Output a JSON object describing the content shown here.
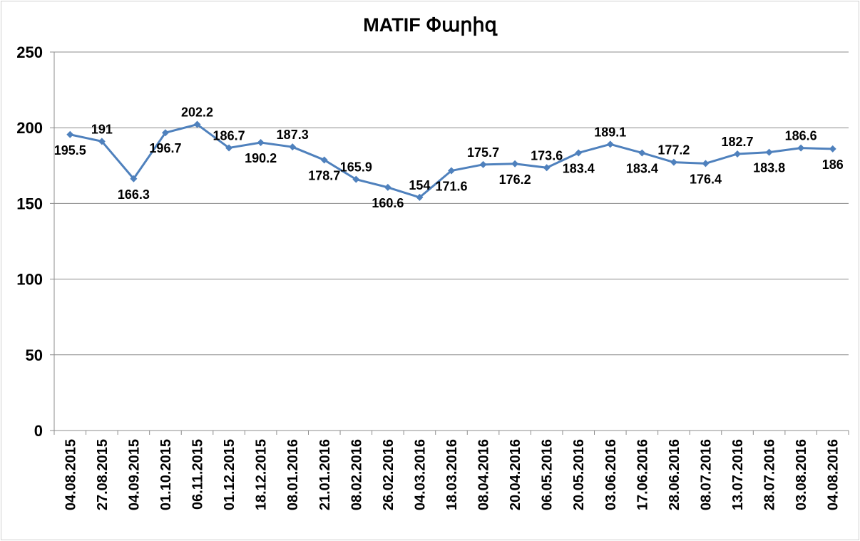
{
  "chart_data": {
    "type": "line",
    "title": "MATIF Փարիզ",
    "xlabel": "",
    "ylabel": "",
    "categories": [
      "04.08.2015",
      "27.08.2015",
      "04.09.2015",
      "01.10.2015",
      "06.11.2015",
      "01.12.2015",
      "18.12.2015",
      "08.01.2016",
      "21.01.2016",
      "08.02.2016",
      "26.02.2016",
      "04.03.2016",
      "18.03.2016",
      "08.04.2016",
      "20.04.2016",
      "06.05.2016",
      "20.05.2016",
      "03.06.2016",
      "17.06.2016",
      "28.06.2016",
      "08.07.2016",
      "13.07.2016",
      "28.07.2016",
      "03.08.2016",
      "04.08.2016"
    ],
    "series": [
      {
        "values": [
          195.5,
          191,
          166.3,
          196.7,
          202.2,
          186.7,
          190.2,
          187.3,
          178.7,
          165.9,
          160.6,
          154,
          171.6,
          175.7,
          176.2,
          173.6,
          183.4,
          189.1,
          183.4,
          177.2,
          176.4,
          182.7,
          183.8,
          186.6,
          186
        ],
        "labels": [
          "195.5",
          "191",
          "166.3",
          "196.7",
          "202.2",
          "186.7",
          "190.2",
          "187.3",
          "178.7",
          "165.9",
          "160.6",
          "154",
          "171.6",
          "175.7",
          "176.2",
          "173.6",
          "183.4",
          "189.1",
          "183.4",
          "177.2",
          "176.4",
          "182.7",
          "183.8",
          "186.6",
          "186"
        ],
        "color": "#4f81bd"
      }
    ],
    "yticks": [
      "0",
      "50",
      "100",
      "150",
      "200",
      "250"
    ],
    "ylim": [
      0,
      250
    ],
    "grid": true,
    "legend": "none"
  }
}
